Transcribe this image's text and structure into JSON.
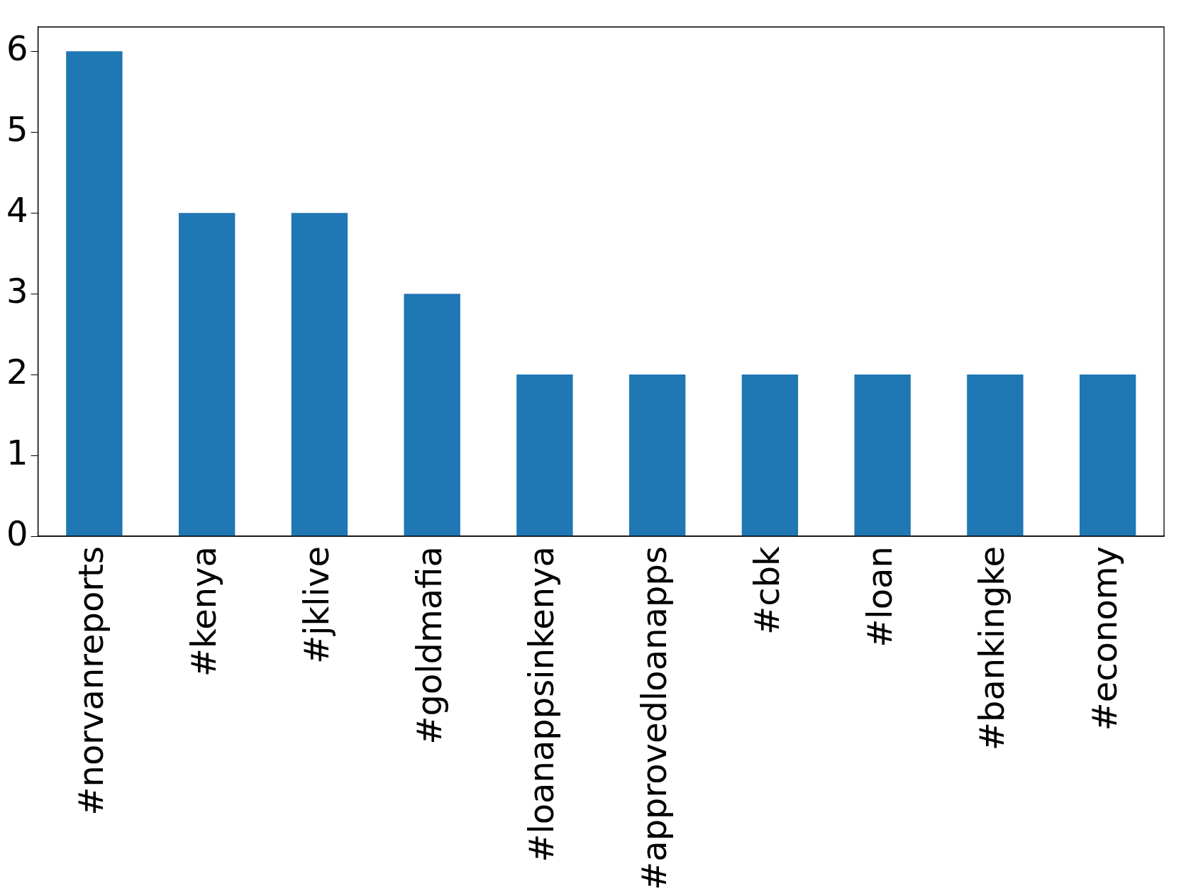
{
  "chart_data": {
    "type": "bar",
    "categories": [
      "#norvanreports",
      "#kenya",
      "#jklive",
      "#goldmafia",
      "#loanappsinkenya",
      "#approvedloanapps",
      "#cbk",
      "#loan",
      "#bankingke",
      "#economy"
    ],
    "values": [
      6,
      4,
      4,
      3,
      2,
      2,
      2,
      2,
      2,
      2
    ],
    "color": "#1f77b4",
    "ylim": [
      0,
      6.3
    ],
    "yticks": [
      0,
      1,
      2,
      3,
      4,
      5,
      6
    ],
    "grid": false,
    "legend": false
  }
}
